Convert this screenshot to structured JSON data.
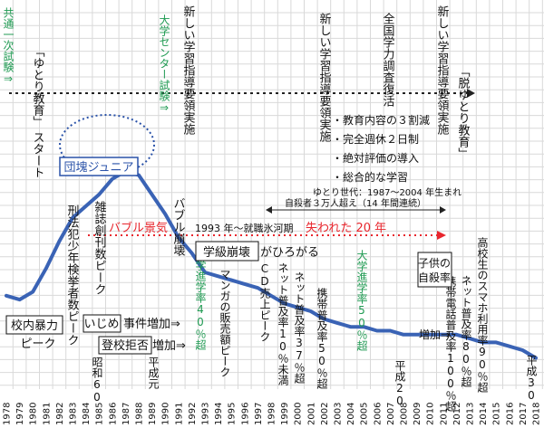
{
  "chart_data": {
    "type": "line",
    "x": [
      1978,
      1979,
      1980,
      1981,
      1982,
      1983,
      1984,
      1985,
      1986,
      1987,
      1988,
      1989,
      1990,
      1991,
      1992,
      1993,
      1994,
      1995,
      1996,
      1997,
      1998,
      1999,
      2000,
      2001,
      2002,
      2003,
      2004,
      2005,
      2006,
      2007,
      2008,
      2009,
      2010,
      2011,
      2012,
      2013,
      2014,
      2015,
      2016,
      2017,
      2018
    ],
    "values": [
      24,
      23,
      25,
      31,
      38,
      44,
      47,
      50,
      54,
      56,
      55,
      50,
      45,
      39,
      35,
      30,
      29,
      28,
      27,
      26,
      24,
      22,
      21,
      20,
      18,
      17,
      16,
      16,
      15,
      15,
      14,
      14,
      14,
      14,
      14,
      13,
      12,
      12,
      11,
      10,
      8
    ],
    "xlim": [
      1978,
      2018
    ],
    "ylim": [
      0,
      100
    ],
    "grid": true,
    "line_color": "#3a63b5",
    "tick_labels": [
      "1978",
      "1979",
      "1980",
      "1981",
      "1982",
      "1983",
      "1984",
      "1985",
      "1986",
      "1987",
      "1988",
      "1989",
      "1990",
      "1991",
      "1992",
      "1993",
      "1994",
      "1995",
      "1996",
      "1997",
      "1998",
      "1999",
      "2000",
      "2001",
      "2002",
      "2003",
      "2004",
      "2005",
      "2006",
      "2007",
      "2008",
      "2009",
      "2010",
      "2011",
      "2012",
      "2013",
      "2014",
      "2015",
      "2016",
      "2017",
      "2018"
    ],
    "annotations": {
      "kyotsu": "共通一次試験⇒",
      "yutori_start_1": "「ゆとり教育」",
      "yutori_start_2": "スタート",
      "center_exam": "大学センター試験⇒",
      "shin_1": "新しい学習指導要領実施",
      "shin_2": "新しい学習指導要領実施",
      "zenkoku": "全国学力調査復活",
      "shin_3": "新しい学習指導要領実施",
      "datsu": "「脱ゆとり教育」",
      "bullet_1": "・教育内容の３割減",
      "bullet_2": "・完全週休２日制",
      "bullet_3": "・絶対評価の導入",
      "bullet_4": "・総合的な学習",
      "yutori_sedai": "ゆとり世代：1987〜2004 年生まれ",
      "dankai": "団塊ジュニア",
      "suicide_30k": "自殺者３万人超え（14 年間連続）",
      "bubble": "バブル景気",
      "hyogaki": "1993 年〜就職氷河期",
      "lost20": "失われた 20 年",
      "bubble_crash": "バブル崩壊",
      "gakkyu_1": "学級崩壊",
      "gakkyu_2": "がひろがる",
      "keihan": "刑法犯少年検挙者数ピーク",
      "zasshi": "雑誌創刊数ピーク",
      "daigaku40": "大学進学率40％超",
      "manga": "マンガの販売額ピーク",
      "cd": "CD売上ピーク",
      "net10": "ネット普及率10％未満",
      "net37": "ネット普及率37％超",
      "keitai50": "携帯普及率50％超",
      "daigaku50": "大学進学率50％超",
      "kodomo_1": "子供の",
      "kodomo_2": "自殺率",
      "kodomo_3": "増加⇒",
      "net80": "ネット普及率80％超",
      "keitai100": "携帯電話普及率100％超",
      "smartphone": "高校生のスマホ利用率90％超",
      "konai_1": "校内暴力",
      "konai_2": "ピーク",
      "ijime_1": "いじめ",
      "ijime_2": "事件増加⇒",
      "tokou_1": "登校拒否",
      "tokou_2": "増加⇒",
      "showa60": "昭和60",
      "heisei1": "平成元",
      "heisei20": "平成20",
      "heisei30": "平成30"
    }
  }
}
